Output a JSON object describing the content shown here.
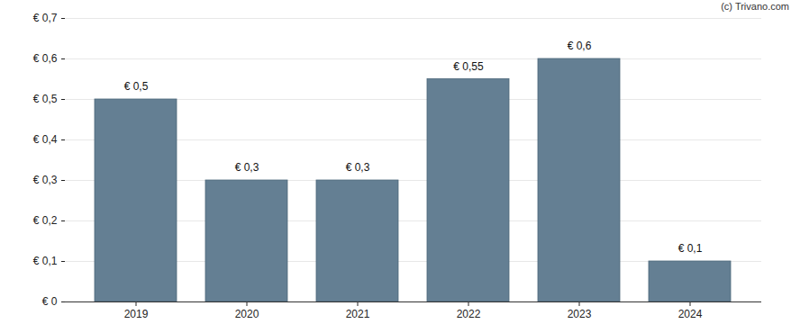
{
  "chart_data": {
    "type": "bar",
    "source": "(c) Trivano.com",
    "categories": [
      "2019",
      "2020",
      "2021",
      "2022",
      "2023",
      "2024"
    ],
    "values": [
      0.5,
      0.3,
      0.3,
      0.55,
      0.6,
      0.1
    ],
    "value_labels": [
      "€ 0,5",
      "€ 0,3",
      "€ 0,3",
      "€ 0,55",
      "€ 0,6",
      "€ 0,1"
    ],
    "data_labels": true,
    "color": "#647f93",
    "ylim": [
      0,
      0.7
    ],
    "yticks": [
      {
        "value": 0,
        "label": "€ 0"
      },
      {
        "value": 0.1,
        "label": "€ 0,1"
      },
      {
        "value": 0.2,
        "label": "€ 0,2"
      },
      {
        "value": 0.3,
        "label": "€ 0,3"
      },
      {
        "value": 0.4,
        "label": "€ 0,4"
      },
      {
        "value": 0.5,
        "label": "€ 0,5"
      },
      {
        "value": 0.6,
        "label": "€ 0,6"
      },
      {
        "value": 0.7,
        "label": "€ 0,7"
      }
    ],
    "grid": true
  }
}
